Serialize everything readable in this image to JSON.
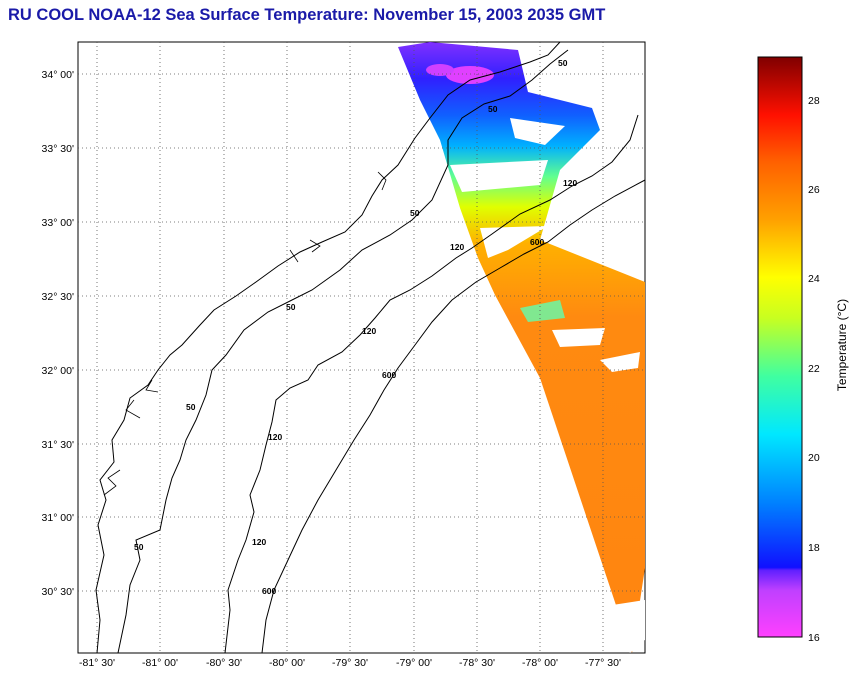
{
  "title": "RU COOL  NOAA-12  Sea Surface Temperature:  November 15, 2003 2035 GMT",
  "map": {
    "lat_ticks": [
      "34° 00'",
      "33° 30'",
      "33° 00'",
      "32° 30'",
      "32° 00'",
      "31° 30'",
      "31° 00'",
      "30° 30'"
    ],
    "lon_ticks": [
      "-81° 30'",
      "-81° 00'",
      "-80° 30'",
      "-80° 00'",
      "-79° 30'",
      "-79° 00'",
      "-78° 30'",
      "-78° 00'",
      "-77° 30'"
    ],
    "contour_labels": [
      "50",
      "50",
      "50",
      "50",
      "50",
      "50",
      "120",
      "120",
      "120",
      "120",
      "120",
      "600",
      "600",
      "600"
    ],
    "colors": {
      "contour": "#000000",
      "grid": "#555555"
    }
  },
  "colorbar": {
    "label": "Temperature (°C)",
    "ticks": [
      "28",
      "26",
      "24",
      "22",
      "20",
      "18",
      "16"
    ],
    "min": 16,
    "max": 29,
    "colors": [
      "#ff40ff",
      "#c040ff",
      "#2020ff",
      "#00c8ff",
      "#00ffc0",
      "#c8ff00",
      "#ffff00",
      "#ff9000",
      "#ff2000",
      "#800000"
    ]
  }
}
